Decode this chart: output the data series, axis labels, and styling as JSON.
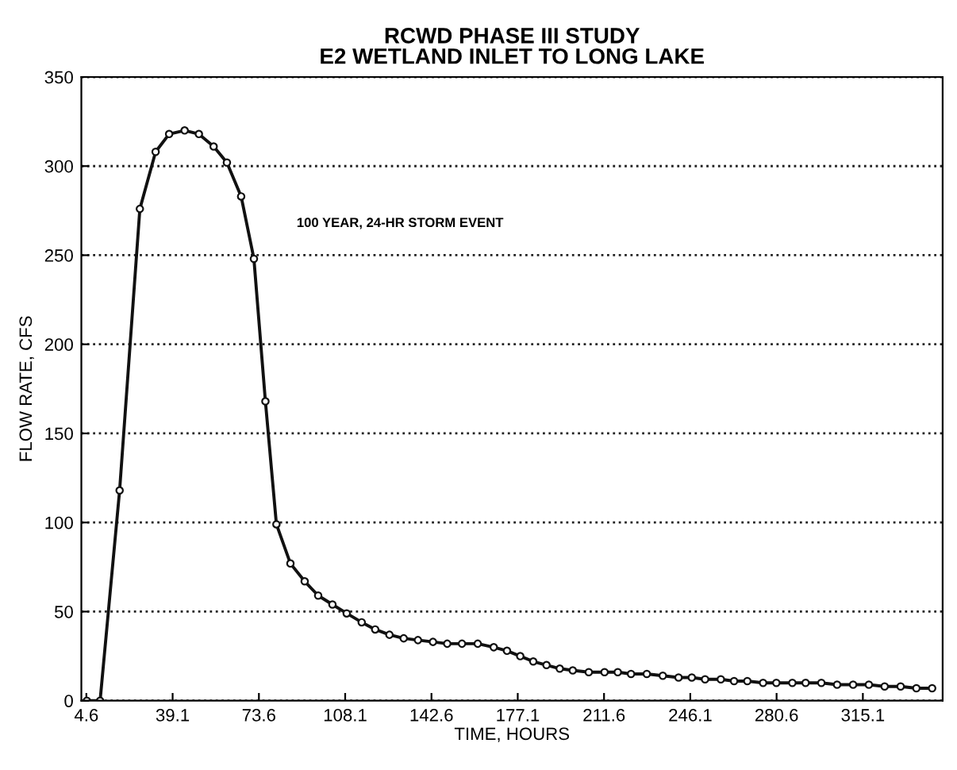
{
  "chart_data": {
    "type": "line",
    "title": "RCWD PHASE III STUDY\nE2 WETLAND INLET TO LONG LAKE",
    "xlabel": "TIME, HOURS",
    "ylabel": "FLOW RATE, CFS",
    "annotations": [
      "100 YEAR, 24-HR STORM EVENT"
    ],
    "series": [
      {
        "color": "#111111",
        "x": [
          4.8,
          10.1,
          17.9,
          26.0,
          32.3,
          37.7,
          43.9,
          49.6,
          55.5,
          60.8,
          66.5,
          71.6,
          76.2,
          80.6,
          86.2,
          91.9,
          97.3,
          103.0,
          108.7,
          114.7,
          120.1,
          125.8,
          131.5,
          137.2,
          143.2,
          148.9,
          154.8,
          161.1,
          167.5,
          172.8,
          178.1,
          183.3,
          188.6,
          193.9,
          199.1,
          205.5,
          211.8,
          217.1,
          222.4,
          228.7,
          235.1,
          241.4,
          246.7,
          252.0,
          258.3,
          263.6,
          268.9,
          275.2,
          280.5,
          286.9,
          292.2,
          298.5,
          304.8,
          311.2,
          317.5,
          323.8,
          330.2,
          336.5,
          342.8
        ],
        "values": [
          0,
          0,
          118,
          276,
          308,
          318,
          320,
          318,
          311,
          302,
          283,
          248,
          168,
          99,
          77,
          67,
          59,
          54,
          49,
          44,
          40,
          37,
          35,
          34,
          33,
          32,
          32,
          32,
          30,
          28,
          25,
          22,
          20,
          18,
          17,
          16,
          16,
          16,
          15,
          15,
          14,
          13,
          13,
          12,
          12,
          11,
          11,
          10,
          10,
          10,
          10,
          10,
          9,
          9,
          9,
          8,
          8,
          7,
          7
        ]
      }
    ],
    "xlim": [
      2.6,
      347
    ],
    "ylim": [
      0,
      350
    ],
    "xticks": [
      {
        "value": 4.6,
        "label": "4.6"
      },
      39.1,
      73.6,
      108.1,
      142.6,
      177.1,
      211.6,
      246.1,
      280.6,
      315.1
    ],
    "yticks": [
      0,
      50,
      100,
      150,
      200,
      250,
      300,
      350
    ],
    "grid": "y",
    "marker": "circle",
    "line_style": "solid"
  }
}
